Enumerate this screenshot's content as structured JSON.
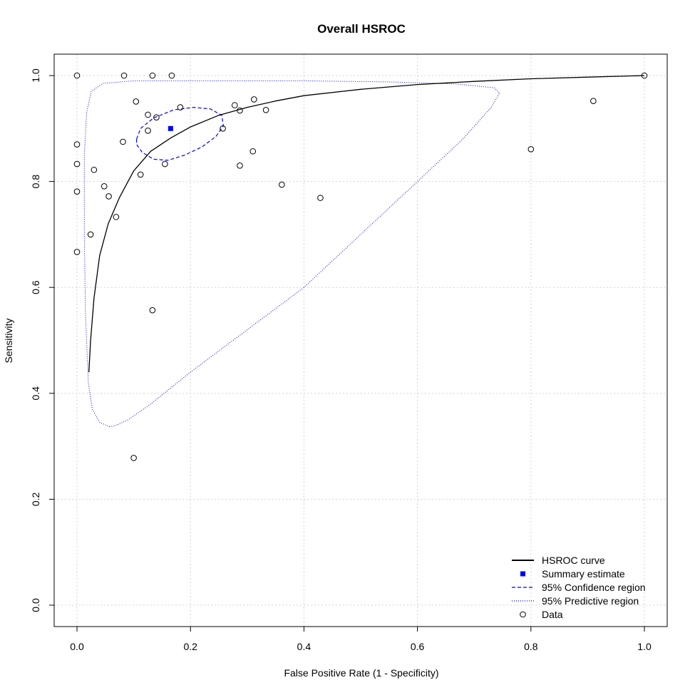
{
  "chart_data": {
    "type": "scatter",
    "title": "Overall HSROC",
    "xlabel": "False Positive Rate (1 - Specificity)",
    "ylabel": "Sensitivity",
    "xlim": [
      0,
      1
    ],
    "ylim": [
      0,
      1
    ],
    "xticks": [
      "0.0",
      "0.2",
      "0.4",
      "0.6",
      "0.8",
      "1.0"
    ],
    "yticks": [
      "0.0",
      "0.2",
      "0.4",
      "0.6",
      "0.8",
      "1.0"
    ],
    "grid": true,
    "legend_position": "bottom-right",
    "legend": [
      {
        "label": "HSROC curve",
        "style": "solid-line",
        "color": "#000000"
      },
      {
        "label": "Summary estimate",
        "style": "filled-square",
        "color": "#0000ff"
      },
      {
        "label": "95% Confidence region",
        "style": "dashed-line",
        "color": "#0000ff"
      },
      {
        "label": "95% Predictive region",
        "style": "dotted-line",
        "color": "#0000ff"
      },
      {
        "label": "Data",
        "style": "open-circle",
        "color": "#000000"
      }
    ],
    "summary_estimate": {
      "x": 0.165,
      "y": 0.9
    },
    "hsroc_curve": [
      [
        0.021,
        0.44
      ],
      [
        0.024,
        0.5
      ],
      [
        0.03,
        0.58
      ],
      [
        0.04,
        0.66
      ],
      [
        0.055,
        0.72
      ],
      [
        0.075,
        0.77
      ],
      [
        0.1,
        0.82
      ],
      [
        0.13,
        0.857
      ],
      [
        0.165,
        0.882
      ],
      [
        0.2,
        0.903
      ],
      [
        0.25,
        0.925
      ],
      [
        0.3,
        0.94
      ],
      [
        0.35,
        0.952
      ],
      [
        0.4,
        0.962
      ],
      [
        0.5,
        0.974
      ],
      [
        0.6,
        0.983
      ],
      [
        0.7,
        0.989
      ],
      [
        0.8,
        0.994
      ],
      [
        0.9,
        0.997
      ],
      [
        1.0,
        1.0
      ]
    ],
    "confidence_region": [
      [
        0.105,
        0.88
      ],
      [
        0.112,
        0.9
      ],
      [
        0.135,
        0.92
      ],
      [
        0.17,
        0.935
      ],
      [
        0.205,
        0.94
      ],
      [
        0.235,
        0.937
      ],
      [
        0.255,
        0.925
      ],
      [
        0.258,
        0.905
      ],
      [
        0.245,
        0.885
      ],
      [
        0.22,
        0.865
      ],
      [
        0.19,
        0.85
      ],
      [
        0.16,
        0.84
      ],
      [
        0.135,
        0.842
      ],
      [
        0.115,
        0.855
      ],
      [
        0.105,
        0.87
      ],
      [
        0.105,
        0.88
      ]
    ],
    "predictive_region": [
      [
        0.058,
        0.337
      ],
      [
        0.04,
        0.345
      ],
      [
        0.027,
        0.37
      ],
      [
        0.02,
        0.42
      ],
      [
        0.015,
        0.55
      ],
      [
        0.013,
        0.7
      ],
      [
        0.013,
        0.85
      ],
      [
        0.017,
        0.93
      ],
      [
        0.025,
        0.97
      ],
      [
        0.045,
        0.985
      ],
      [
        0.1,
        0.99
      ],
      [
        0.2,
        0.99
      ],
      [
        0.4,
        0.99
      ],
      [
        0.55,
        0.988
      ],
      [
        0.67,
        0.984
      ],
      [
        0.735,
        0.977
      ],
      [
        0.745,
        0.967
      ],
      [
        0.73,
        0.94
      ],
      [
        0.68,
        0.88
      ],
      [
        0.6,
        0.8
      ],
      [
        0.5,
        0.7
      ],
      [
        0.4,
        0.6
      ],
      [
        0.3,
        0.52
      ],
      [
        0.2,
        0.44
      ],
      [
        0.13,
        0.38
      ],
      [
        0.09,
        0.35
      ],
      [
        0.07,
        0.34
      ],
      [
        0.058,
        0.337
      ]
    ],
    "data_points": [
      {
        "x": 0.0,
        "y": 1.0
      },
      {
        "x": 0.083,
        "y": 1.0
      },
      {
        "x": 0.133,
        "y": 1.0
      },
      {
        "x": 0.167,
        "y": 1.0
      },
      {
        "x": 1.0,
        "y": 1.0
      },
      {
        "x": 0.104,
        "y": 0.951
      },
      {
        "x": 0.312,
        "y": 0.955
      },
      {
        "x": 0.278,
        "y": 0.944
      },
      {
        "x": 0.182,
        "y": 0.94
      },
      {
        "x": 0.287,
        "y": 0.934
      },
      {
        "x": 0.333,
        "y": 0.935
      },
      {
        "x": 0.125,
        "y": 0.926
      },
      {
        "x": 0.14,
        "y": 0.921
      },
      {
        "x": 0.91,
        "y": 0.952
      },
      {
        "x": 0.125,
        "y": 0.896
      },
      {
        "x": 0.257,
        "y": 0.9
      },
      {
        "x": 0.081,
        "y": 0.875
      },
      {
        "x": 0.0,
        "y": 0.87
      },
      {
        "x": 0.31,
        "y": 0.857
      },
      {
        "x": 0.8,
        "y": 0.861
      },
      {
        "x": 0.0,
        "y": 0.833
      },
      {
        "x": 0.155,
        "y": 0.833
      },
      {
        "x": 0.287,
        "y": 0.83
      },
      {
        "x": 0.03,
        "y": 0.822
      },
      {
        "x": 0.112,
        "y": 0.813
      },
      {
        "x": 0.361,
        "y": 0.794
      },
      {
        "x": 0.048,
        "y": 0.791
      },
      {
        "x": 0.0,
        "y": 0.781
      },
      {
        "x": 0.056,
        "y": 0.772
      },
      {
        "x": 0.429,
        "y": 0.769
      },
      {
        "x": 0.069,
        "y": 0.733
      },
      {
        "x": 0.024,
        "y": 0.7
      },
      {
        "x": 0.0,
        "y": 0.667
      },
      {
        "x": 0.133,
        "y": 0.557
      },
      {
        "x": 0.1,
        "y": 0.278
      }
    ]
  }
}
